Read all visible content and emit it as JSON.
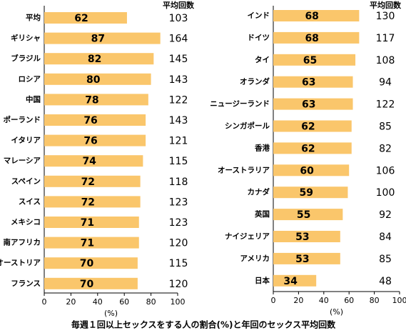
{
  "chart_data": [
    {
      "type": "bar",
      "orientation": "horizontal",
      "color": "#fac66b",
      "categories": [
        "平均",
        "ギリシャ",
        "ブラジル",
        "ロシア",
        "中国",
        "ポーランド",
        "イタリア",
        "マレーシア",
        "スペイン",
        "スイス",
        "メキシコ",
        "南アフリカ",
        "オーストリア",
        "フランス"
      ],
      "values": [
        62,
        87,
        82,
        80,
        78,
        76,
        76,
        74,
        72,
        72,
        71,
        71,
        70,
        70
      ],
      "counts": {
        "label": "平均回数",
        "values": [
          103,
          164,
          145,
          143,
          122,
          143,
          121,
          115,
          118,
          123,
          123,
          120,
          115,
          120
        ]
      },
      "xlabel": "(%)",
      "xlim": [
        0,
        100
      ],
      "xticks": [
        0,
        20,
        40,
        60,
        80,
        100
      ]
    },
    {
      "type": "bar",
      "orientation": "horizontal",
      "color": "#fac66b",
      "categories": [
        "インド",
        "ドイツ",
        "タイ",
        "オランダ",
        "ニュージーランド",
        "シンガポール",
        "香港",
        "オーストラリア",
        "カナダ",
        "英国",
        "ナイジェリア",
        "アメリカ",
        "日本"
      ],
      "values": [
        68,
        68,
        65,
        63,
        63,
        62,
        62,
        60,
        59,
        55,
        53,
        53,
        34
      ],
      "counts": {
        "label": "平均回数",
        "values": [
          130,
          117,
          108,
          94,
          122,
          85,
          82,
          106,
          100,
          92,
          84,
          85,
          48
        ]
      },
      "xlabel": "(%)",
      "xlim": [
        0,
        100
      ],
      "xticks": [
        0,
        20,
        40,
        60,
        80,
        100
      ]
    }
  ],
  "caption": "毎週１回以上セックスをする人の割合(%)と年回のセックス平均回数"
}
